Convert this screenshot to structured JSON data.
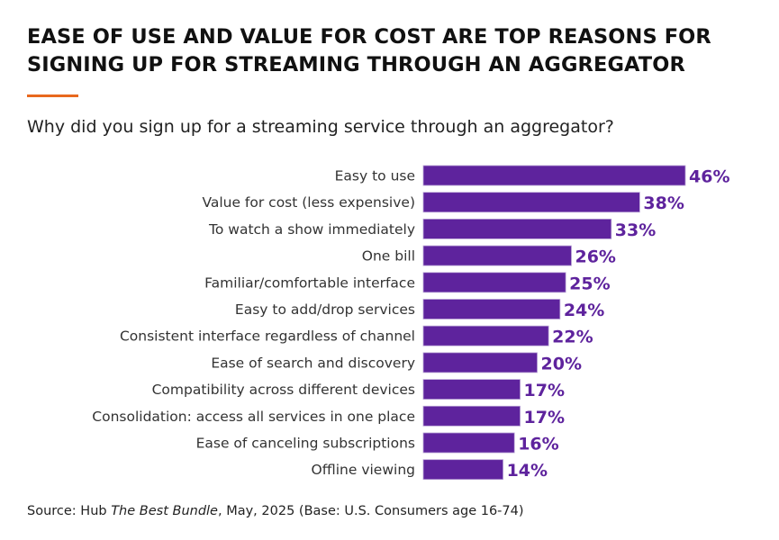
{
  "title_line1": "EASE OF USE AND VALUE FOR COST ARE TOP REASONS FOR",
  "title_line2": "SIGNING UP FOR STREAMING THROUGH AN AGGREGATOR",
  "source": {
    "prefix": "Source: Hub ",
    "italic": "The Best Bundle",
    "suffix": ", May, 2025 (Base: U.S. Consumers age 16-74)"
  },
  "colors": {
    "bar": "#5e239d",
    "accent": "#e8681e"
  },
  "chart_data": {
    "type": "bar",
    "orientation": "horizontal",
    "title": "Why did you sign up for a streaming service through an aggregator?",
    "categories": [
      "Easy to use",
      "Value for cost (less expensive)",
      "To watch a show immediately",
      "One bill",
      "Familiar/comfortable interface",
      "Easy to add/drop services",
      "Consistent interface regardless of channel",
      "Ease of search and discovery",
      "Compatibility across different devices",
      "Consolidation: access all services in one place",
      "Ease of canceling subscriptions",
      "Offline viewing"
    ],
    "values": [
      46,
      38,
      33,
      26,
      25,
      24,
      22,
      20,
      17,
      17,
      16,
      14
    ],
    "unit": "%",
    "xlabel": "",
    "ylabel": "",
    "grid": false
  }
}
